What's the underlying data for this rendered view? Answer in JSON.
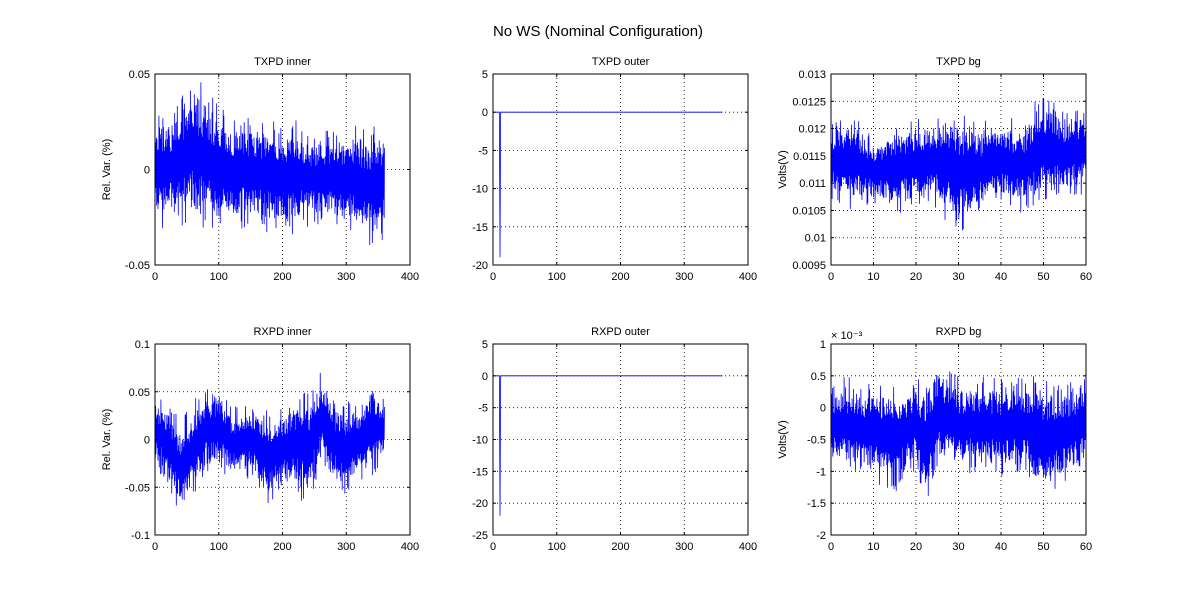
{
  "figure": {
    "title": "No WS (Nominal Configuration)"
  },
  "colors": {
    "series": "#0000ff",
    "axes": "#000000",
    "grid": "#000000",
    "background": "#ffffff"
  },
  "chart_data": [
    {
      "type": "line",
      "title": "TXPD inner",
      "xlabel": "",
      "ylabel": "Rel. Var. (%)",
      "xlim": [
        0,
        400
      ],
      "ylim": [
        -0.05,
        0.05
      ],
      "x_ticks": [
        "0",
        "100",
        "200",
        "300",
        "400"
      ],
      "y_ticks": [
        "-0.05",
        "0",
        "0.05"
      ],
      "grid": true,
      "series": [
        {
          "x": [
            0,
            20,
            40,
            60,
            80,
            100,
            120,
            140,
            160,
            180,
            200,
            220,
            240,
            260,
            280,
            300,
            320,
            340,
            360
          ],
          "upper": [
            0.035,
            0.03,
            0.038,
            0.047,
            0.045,
            0.033,
            0.028,
            0.03,
            0.027,
            0.026,
            0.026,
            0.028,
            0.02,
            0.021,
            0.023,
            0.023,
            0.024,
            0.025,
            0.026
          ],
          "lower": [
            -0.032,
            -0.03,
            -0.03,
            -0.029,
            -0.031,
            -0.031,
            -0.032,
            -0.032,
            -0.033,
            -0.034,
            -0.036,
            -0.034,
            -0.03,
            -0.03,
            -0.031,
            -0.033,
            -0.037,
            -0.043,
            -0.04
          ]
        }
      ]
    },
    {
      "type": "line",
      "title": "TXPD outer",
      "xlabel": "",
      "ylabel": "",
      "xlim": [
        0,
        400
      ],
      "ylim": [
        -20,
        5
      ],
      "x_ticks": [
        "0",
        "100",
        "200",
        "300",
        "400"
      ],
      "y_ticks": [
        "-20",
        "-15",
        "-10",
        "-5",
        "0",
        "5"
      ],
      "grid": true,
      "series": [
        {
          "x": [
            0,
            10,
            11,
            12,
            360
          ],
          "y": [
            0,
            0,
            -19,
            0,
            0
          ]
        }
      ]
    },
    {
      "type": "line",
      "title": "TXPD bg",
      "xlabel": "",
      "ylabel": "Volts(V)",
      "xlim": [
        0,
        60
      ],
      "ylim": [
        0.0095,
        0.013
      ],
      "x_ticks": [
        "0",
        "10",
        "20",
        "30",
        "40",
        "50",
        "60"
      ],
      "y_ticks": [
        "0.0095",
        "0.01",
        "0.0105",
        "0.011",
        "0.0115",
        "0.012",
        "0.0125",
        "0.013"
      ],
      "grid": true,
      "series": [
        {
          "x": [
            0,
            5,
            10,
            15,
            20,
            25,
            30,
            35,
            40,
            45,
            50,
            55,
            60
          ],
          "upper": [
            0.01215,
            0.01235,
            0.01185,
            0.0121,
            0.0122,
            0.0123,
            0.0124,
            0.01215,
            0.0122,
            0.0122,
            0.0127,
            0.0123,
            0.0125
          ],
          "lower": [
            0.0107,
            0.0105,
            0.0106,
            0.0104,
            0.0106,
            0.0105,
            0.01,
            0.0104,
            0.0106,
            0.0104,
            0.0106,
            0.0107,
            0.0108
          ]
        }
      ]
    },
    {
      "type": "line",
      "title": "RXPD inner",
      "xlabel": "",
      "ylabel": "Rel. Var. (%)",
      "xlim": [
        0,
        400
      ],
      "ylim": [
        -0.1,
        0.1
      ],
      "x_ticks": [
        "0",
        "100",
        "200",
        "300",
        "400"
      ],
      "y_ticks": [
        "-0.1",
        "-0.05",
        "0",
        "0.05",
        "0.1"
      ],
      "grid": true,
      "series": [
        {
          "x": [
            0,
            20,
            40,
            60,
            80,
            100,
            120,
            140,
            160,
            180,
            200,
            220,
            240,
            260,
            280,
            300,
            320,
            340,
            360
          ],
          "upper": [
            0.05,
            0.04,
            0.02,
            0.04,
            0.06,
            0.055,
            0.035,
            0.04,
            0.035,
            0.03,
            0.035,
            0.05,
            0.05,
            0.078,
            0.045,
            0.04,
            0.045,
            0.06,
            0.045
          ],
          "lower": [
            -0.03,
            -0.05,
            -0.08,
            -0.06,
            -0.04,
            -0.03,
            -0.045,
            -0.04,
            -0.045,
            -0.07,
            -0.05,
            -0.06,
            -0.07,
            -0.03,
            -0.05,
            -0.058,
            -0.05,
            -0.04,
            -0.02
          ]
        }
      ]
    },
    {
      "type": "line",
      "title": "RXPD outer",
      "xlabel": "",
      "ylabel": "",
      "xlim": [
        0,
        400
      ],
      "ylim": [
        -25,
        5
      ],
      "x_ticks": [
        "0",
        "100",
        "200",
        "300",
        "400"
      ],
      "y_ticks": [
        "-25",
        "-20",
        "-15",
        "-10",
        "-5",
        "0",
        "5"
      ],
      "grid": true,
      "series": [
        {
          "x": [
            0,
            10,
            11,
            12,
            360
          ],
          "y": [
            0,
            0,
            -22,
            0,
            0
          ]
        }
      ]
    },
    {
      "type": "line",
      "title": "RXPD bg",
      "xlabel": "",
      "ylabel": "Volts(V)",
      "xlim": [
        0,
        60
      ],
      "ylim": [
        -2,
        1
      ],
      "y_multiplier": "× 10⁻³",
      "x_ticks": [
        "0",
        "10",
        "20",
        "30",
        "40",
        "50",
        "60"
      ],
      "y_ticks": [
        "-2",
        "-1.5",
        "-1",
        "-0.5",
        "0",
        "0.5",
        "1"
      ],
      "grid": true,
      "series": [
        {
          "x": [
            0,
            5,
            10,
            15,
            20,
            22,
            25,
            30,
            35,
            40,
            45,
            50,
            55,
            60
          ],
          "upper": [
            0.45,
            0.5,
            0.4,
            0.45,
            0.45,
            0.5,
            0.8,
            0.5,
            0.5,
            0.45,
            0.5,
            0.55,
            0.45,
            0.5
          ],
          "lower": [
            -1.0,
            -1.1,
            -1.2,
            -1.35,
            -1.0,
            -1.7,
            -1.0,
            -1.1,
            -1.0,
            -1.1,
            -1.0,
            -1.45,
            -1.25,
            -1.0
          ]
        }
      ]
    }
  ]
}
